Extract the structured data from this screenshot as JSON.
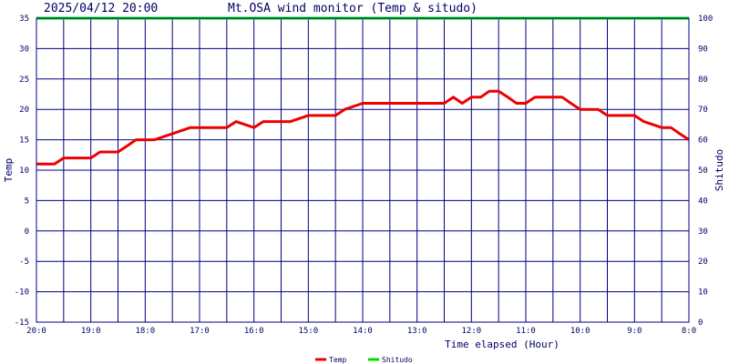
{
  "header": {
    "timestamp": "2025/04/12 20:00",
    "title": "Mt.OSA wind monitor (Temp & situdo)"
  },
  "colors": {
    "plot_border": "#000080",
    "grid": "#000080",
    "temp": "#ee0000",
    "shitudo": "#00dd00",
    "text": "#000066"
  },
  "chart_data": {
    "type": "line",
    "title": "Mt.OSA wind monitor (Temp & situdo)",
    "xlabel": "Time elapsed (Hour)",
    "ylabel": "Temp",
    "y2label": "Shitudo",
    "x_tick_labels": [
      "20:0",
      "19:0",
      "18:0",
      "17:0",
      "16:0",
      "15:0",
      "14:0",
      "13:0",
      "12:0",
      "11:0",
      "10:0",
      "9:0",
      "8:0"
    ],
    "x_direction": "reverse-time",
    "ylim": [
      -15,
      35
    ],
    "y_ticks": [
      -15,
      -10,
      -5,
      0,
      5,
      10,
      15,
      20,
      25,
      30,
      35
    ],
    "y2lim": [
      0,
      100
    ],
    "y2_ticks": [
      0,
      10,
      20,
      30,
      40,
      50,
      60,
      70,
      80,
      90,
      100
    ],
    "grid": true,
    "legend_position": "bottom-center",
    "series": [
      {
        "name": "Temp",
        "axis": "left",
        "color": "#ee0000",
        "x_hours_elapsed": [
          0,
          0.33,
          0.5,
          1.0,
          1.17,
          1.5,
          1.67,
          1.83,
          2.17,
          2.5,
          2.83,
          3.0,
          3.17,
          3.5,
          3.67,
          4.0,
          4.17,
          4.5,
          4.67,
          5.0,
          5.17,
          5.5,
          5.67,
          6.0,
          6.17,
          6.33,
          6.67,
          7.5,
          7.67,
          7.83,
          8.0,
          8.17,
          8.33,
          8.5,
          8.67,
          8.83,
          9.0,
          9.17,
          9.33,
          9.5,
          9.67,
          9.83,
          10.0,
          10.33,
          10.5,
          10.67,
          10.83,
          11.0,
          11.17,
          11.5,
          11.67,
          11.83,
          12.0
        ],
        "values": [
          11,
          11,
          12,
          12,
          13,
          13,
          14,
          15,
          15,
          16,
          17,
          17,
          17,
          17,
          18,
          17,
          18,
          18,
          18,
          19,
          19,
          19,
          20,
          21,
          21,
          21,
          21,
          21,
          22,
          21,
          22,
          22,
          23,
          23,
          22,
          21,
          21,
          22,
          22,
          22,
          22,
          21,
          20,
          20,
          19,
          19,
          19,
          19,
          18,
          17,
          17,
          16,
          15
        ]
      },
      {
        "name": "Shitudo",
        "axis": "right",
        "color": "#00dd00",
        "x_hours_elapsed": [
          0,
          12
        ],
        "values": [
          100,
          100
        ]
      }
    ]
  },
  "legend": [
    {
      "label": "Temp",
      "color": "#ee0000"
    },
    {
      "label": "Shitudo",
      "color": "#00dd00"
    }
  ]
}
